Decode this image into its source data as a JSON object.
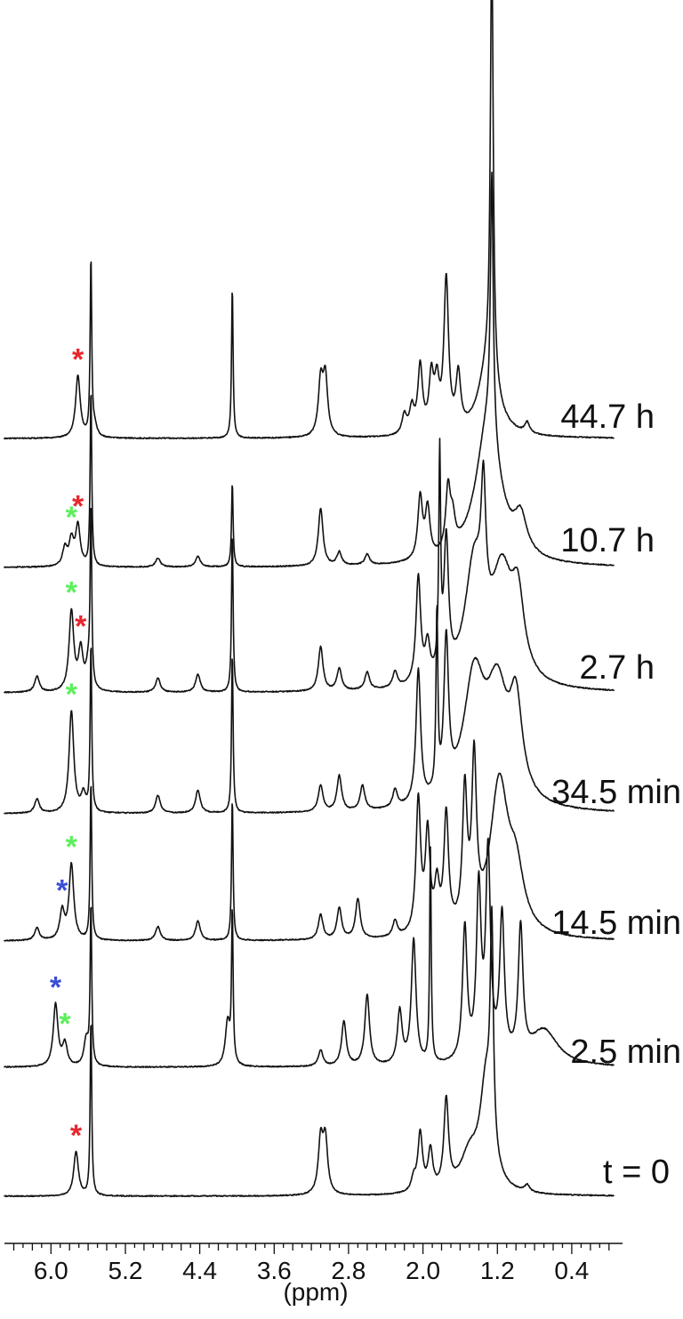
{
  "chart_data": {
    "type": "line",
    "title": "",
    "xlabel": "(ppm)",
    "ylabel": "",
    "x_reversed": true,
    "xlim": [
      6.5,
      -0.05
    ],
    "x_ticks": [
      6.0,
      5.2,
      4.4,
      3.6,
      2.8,
      2.0,
      1.2,
      0.4
    ],
    "x_tick_labels": [
      "6.0",
      "5.2",
      "4.4",
      "3.6",
      "2.8",
      "2.0",
      "1.2",
      "0.4"
    ],
    "grid": false,
    "legend": "none",
    "marker_colors": {
      "red": "#e8262b",
      "green": "#5cf05c",
      "blue": "#3b4fd6"
    },
    "series": [
      {
        "label": "44.7 h",
        "peaks": [
          {
            "ppm": 5.71,
            "h": 70
          },
          {
            "ppm": 5.57,
            "h": 200,
            "w": 0.01
          },
          {
            "ppm": 5.53,
            "h": 12
          },
          {
            "ppm": 4.05,
            "h": 170,
            "w": 0.01
          },
          {
            "ppm": 3.1,
            "h": 60
          },
          {
            "ppm": 3.05,
            "h": 65
          },
          {
            "ppm": 2.2,
            "h": 22
          },
          {
            "ppm": 2.12,
            "h": 28
          },
          {
            "ppm": 2.03,
            "h": 75
          },
          {
            "ppm": 1.91,
            "h": 60
          },
          {
            "ppm": 1.85,
            "h": 50
          },
          {
            "ppm": 1.75,
            "h": 170
          },
          {
            "ppm": 1.62,
            "h": 60
          },
          {
            "ppm": 1.26,
            "h": 490,
            "w": 0.018
          },
          {
            "ppm": 1.3,
            "h": 80,
            "w": 0.12
          },
          {
            "ppm": 0.88,
            "h": 12
          }
        ]
      },
      {
        "label": "10.7 h",
        "peaks": [
          {
            "ppm": 5.85,
            "h": 20
          },
          {
            "ppm": 5.78,
            "h": 28
          },
          {
            "ppm": 5.71,
            "h": 45
          },
          {
            "ppm": 5.57,
            "h": 200,
            "w": 0.01
          },
          {
            "ppm": 4.85,
            "h": 10
          },
          {
            "ppm": 4.42,
            "h": 12
          },
          {
            "ppm": 4.05,
            "h": 95,
            "w": 0.01
          },
          {
            "ppm": 3.1,
            "h": 65
          },
          {
            "ppm": 2.9,
            "h": 15
          },
          {
            "ppm": 2.6,
            "h": 12
          },
          {
            "ppm": 2.03,
            "h": 70
          },
          {
            "ppm": 1.95,
            "h": 55
          },
          {
            "ppm": 1.73,
            "h": 70
          },
          {
            "ppm": 1.68,
            "h": 30
          },
          {
            "ppm": 1.3,
            "h": 160,
            "w": 0.16
          },
          {
            "ppm": 1.26,
            "h": 290,
            "w": 0.018
          },
          {
            "ppm": 0.95,
            "h": 40,
            "w": 0.08
          }
        ]
      },
      {
        "label": "2.7 h",
        "peaks": [
          {
            "ppm": 6.15,
            "h": 18
          },
          {
            "ppm": 5.78,
            "h": 90
          },
          {
            "ppm": 5.68,
            "h": 45
          },
          {
            "ppm": 5.6,
            "h": 25
          },
          {
            "ppm": 5.57,
            "h": 200,
            "w": 0.01
          },
          {
            "ppm": 4.85,
            "h": 16
          },
          {
            "ppm": 4.42,
            "h": 20
          },
          {
            "ppm": 4.05,
            "h": 180,
            "w": 0.01
          },
          {
            "ppm": 3.1,
            "h": 50
          },
          {
            "ppm": 2.9,
            "h": 25
          },
          {
            "ppm": 2.6,
            "h": 20
          },
          {
            "ppm": 2.3,
            "h": 18
          },
          {
            "ppm": 2.05,
            "h": 120
          },
          {
            "ppm": 1.95,
            "h": 40
          },
          {
            "ppm": 1.82,
            "h": 240,
            "w": 0.012
          },
          {
            "ppm": 1.75,
            "h": 150
          },
          {
            "ppm": 1.45,
            "h": 130,
            "w": 0.12
          },
          {
            "ppm": 1.35,
            "h": 140
          },
          {
            "ppm": 1.15,
            "h": 120,
            "w": 0.14
          },
          {
            "ppm": 0.98,
            "h": 80,
            "w": 0.08
          }
        ]
      },
      {
        "label": "34.5 min",
        "peaks": [
          {
            "ppm": 6.15,
            "h": 16
          },
          {
            "ppm": 5.78,
            "h": 115
          },
          {
            "ppm": 5.65,
            "h": 20
          },
          {
            "ppm": 5.57,
            "h": 190,
            "w": 0.01
          },
          {
            "ppm": 4.85,
            "h": 20
          },
          {
            "ppm": 4.42,
            "h": 26
          },
          {
            "ppm": 4.05,
            "h": 180,
            "w": 0.01
          },
          {
            "ppm": 3.1,
            "h": 30
          },
          {
            "ppm": 2.9,
            "h": 40
          },
          {
            "ppm": 2.65,
            "h": 28
          },
          {
            "ppm": 2.3,
            "h": 20
          },
          {
            "ppm": 2.05,
            "h": 150
          },
          {
            "ppm": 1.85,
            "h": 200,
            "w": 0.012
          },
          {
            "ppm": 1.75,
            "h": 170
          },
          {
            "ppm": 1.45,
            "h": 140,
            "w": 0.14
          },
          {
            "ppm": 1.2,
            "h": 120,
            "w": 0.14
          },
          {
            "ppm": 1.0,
            "h": 100,
            "w": 0.08
          }
        ]
      },
      {
        "label": "14.5 min",
        "peaks": [
          {
            "ppm": 6.15,
            "h": 14
          },
          {
            "ppm": 5.88,
            "h": 32
          },
          {
            "ppm": 5.78,
            "h": 85
          },
          {
            "ppm": 5.57,
            "h": 180,
            "w": 0.01
          },
          {
            "ppm": 4.85,
            "h": 16
          },
          {
            "ppm": 4.42,
            "h": 22
          },
          {
            "ppm": 4.05,
            "h": 160,
            "w": 0.01
          },
          {
            "ppm": 3.1,
            "h": 28
          },
          {
            "ppm": 2.9,
            "h": 35
          },
          {
            "ppm": 2.7,
            "h": 45
          },
          {
            "ppm": 2.3,
            "h": 18
          },
          {
            "ppm": 2.05,
            "h": 150
          },
          {
            "ppm": 1.95,
            "h": 110
          },
          {
            "ppm": 1.85,
            "h": 50
          },
          {
            "ppm": 1.75,
            "h": 130
          },
          {
            "ppm": 1.55,
            "h": 150
          },
          {
            "ppm": 1.45,
            "h": 180
          },
          {
            "ppm": 1.18,
            "h": 170,
            "w": 0.12
          },
          {
            "ppm": 1.0,
            "h": 60,
            "w": 0.1
          }
        ]
      },
      {
        "label": "2.5 min",
        "peaks": [
          {
            "ppm": 5.95,
            "h": 70
          },
          {
            "ppm": 5.85,
            "h": 25
          },
          {
            "ppm": 5.62,
            "h": 30
          },
          {
            "ppm": 5.57,
            "h": 180,
            "w": 0.01
          },
          {
            "ppm": 4.1,
            "h": 50
          },
          {
            "ppm": 4.05,
            "h": 170,
            "w": 0.01
          },
          {
            "ppm": 3.1,
            "h": 18
          },
          {
            "ppm": 2.85,
            "h": 50
          },
          {
            "ppm": 2.6,
            "h": 80
          },
          {
            "ppm": 2.25,
            "h": 60
          },
          {
            "ppm": 2.1,
            "h": 140
          },
          {
            "ppm": 1.92,
            "h": 240,
            "w": 0.01
          },
          {
            "ppm": 1.55,
            "h": 150
          },
          {
            "ppm": 1.4,
            "h": 190
          },
          {
            "ppm": 1.3,
            "h": 230
          },
          {
            "ppm": 1.15,
            "h": 160
          },
          {
            "ppm": 0.95,
            "h": 145
          },
          {
            "ppm": 0.7,
            "h": 40,
            "w": 0.18
          }
        ]
      },
      {
        "label": "t = 0",
        "peaks": [
          {
            "ppm": 5.73,
            "h": 50
          },
          {
            "ppm": 5.57,
            "h": 200,
            "w": 0.01
          },
          {
            "ppm": 3.1,
            "h": 60
          },
          {
            "ppm": 3.05,
            "h": 60
          },
          {
            "ppm": 2.1,
            "h": 14
          },
          {
            "ppm": 2.03,
            "h": 65
          },
          {
            "ppm": 1.92,
            "h": 45
          },
          {
            "ppm": 1.75,
            "h": 100
          },
          {
            "ppm": 1.5,
            "h": 40,
            "w": 0.12
          },
          {
            "ppm": 1.26,
            "h": 240,
            "w": 0.02
          },
          {
            "ppm": 1.32,
            "h": 120,
            "w": 0.08
          },
          {
            "ppm": 0.88,
            "h": 8
          }
        ]
      }
    ],
    "markers": [
      {
        "series": "44.7 h",
        "ppm": 5.71,
        "color": "red"
      },
      {
        "series": "10.7 h",
        "ppm": 5.71,
        "color": "red"
      },
      {
        "series": "10.7 h",
        "ppm": 5.78,
        "color": "green"
      },
      {
        "series": "2.7 h",
        "ppm": 5.78,
        "color": "green"
      },
      {
        "series": "2.7 h",
        "ppm": 5.68,
        "color": "red"
      },
      {
        "series": "34.5 min",
        "ppm": 5.78,
        "color": "green"
      },
      {
        "series": "14.5 min",
        "ppm": 5.78,
        "color": "green"
      },
      {
        "series": "14.5 min",
        "ppm": 5.88,
        "color": "blue"
      },
      {
        "series": "2.5 min",
        "ppm": 5.95,
        "color": "blue"
      },
      {
        "series": "2.5 min",
        "ppm": 5.85,
        "color": "green"
      },
      {
        "series": "t = 0",
        "ppm": 5.73,
        "color": "red"
      }
    ]
  }
}
